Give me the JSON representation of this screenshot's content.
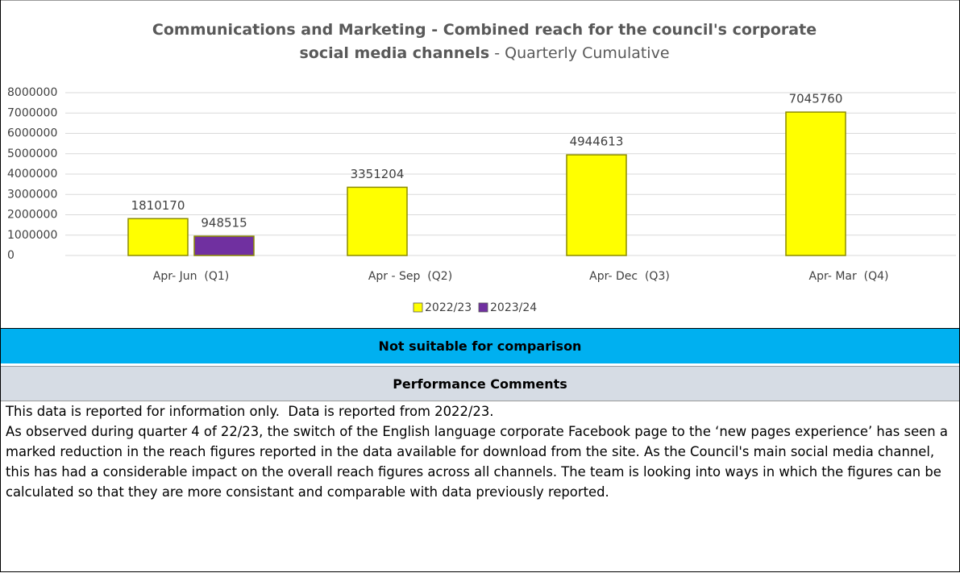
{
  "chart_data": {
    "type": "bar",
    "title": "Communications and Marketing - Combined reach for the council's corporate social media channels",
    "subtitle": "- Quarterly Cumulative",
    "categories": [
      "Apr- Jun  (Q1)",
      "Apr - Sep  (Q2)",
      "Apr- Dec  (Q3)",
      "Apr- Mar  (Q4)"
    ],
    "series": [
      {
        "name": "2022/23",
        "color": "#ffff00",
        "values": [
          1810170,
          3351204,
          4944613,
          7045760
        ]
      },
      {
        "name": "2023/24",
        "color": "#7030a0",
        "values": [
          948515,
          null,
          null,
          null
        ]
      }
    ],
    "ylim": [
      0,
      8000000
    ],
    "yticks": [
      0,
      1000000,
      2000000,
      3000000,
      4000000,
      5000000,
      6000000,
      7000000,
      8000000
    ],
    "grid": true,
    "legend": "bottom"
  },
  "banner": "Not suitable for comparison",
  "section_title": "Performance Comments",
  "comments": [
    "This data is reported for information only.  Data is reported from 2022/23.",
    "As observed during quarter 4 of 22/23, the switch of the English language corporate Facebook page to the ‘new pages experience’ has seen a marked reduction in the reach figures reported in the data available for download from the site. As the Council's main social media channel, this has had a considerable impact on the overall reach figures across all channels. The team is looking into ways in which the figures can be calculated so that they are more consistant and comparable with data previously reported."
  ]
}
